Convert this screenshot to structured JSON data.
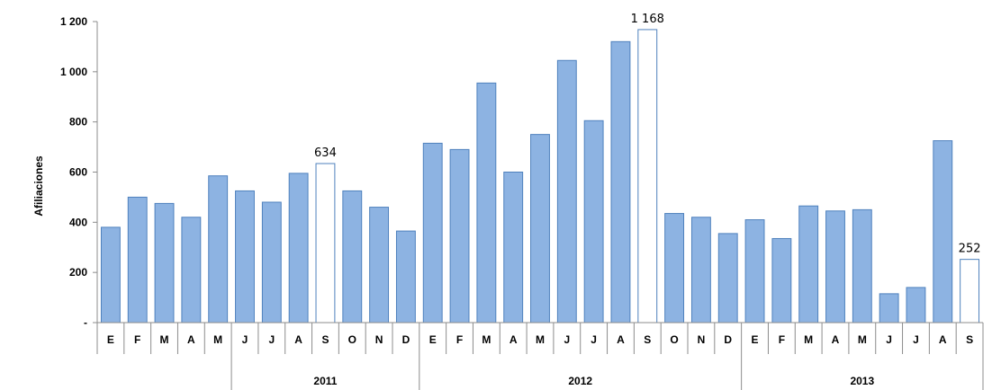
{
  "chart_data": {
    "type": "bar",
    "ylabel": "Afiliaciones",
    "ylim": [
      0,
      1200
    ],
    "yticks": [
      0,
      200,
      400,
      600,
      800,
      1000,
      1200
    ],
    "ytick_labels": [
      "-",
      "200",
      "400",
      "600",
      "800",
      "1 000",
      "1 200"
    ],
    "grid": false,
    "categories": [
      "E",
      "F",
      "M",
      "A",
      "M",
      "J",
      "J",
      "A",
      "S",
      "O",
      "N",
      "D",
      "E",
      "F",
      "M",
      "A",
      "M",
      "J",
      "J",
      "A",
      "S",
      "O",
      "N",
      "D",
      "E",
      "F",
      "M",
      "A",
      "M",
      "J",
      "J",
      "A",
      "S"
    ],
    "values": [
      380,
      500,
      475,
      420,
      585,
      525,
      480,
      595,
      634,
      525,
      460,
      365,
      715,
      690,
      955,
      600,
      750,
      1045,
      805,
      1120,
      1168,
      435,
      420,
      355,
      410,
      335,
      465,
      445,
      450,
      115,
      140,
      725,
      252
    ],
    "highlight_indices": [
      8,
      20,
      32
    ],
    "data_labels": [
      {
        "index": 8,
        "text": "634"
      },
      {
        "index": 20,
        "text": "1 168"
      },
      {
        "index": 32,
        "text": "252"
      }
    ],
    "groups": [
      {
        "label": "",
        "start": 0,
        "end": 4
      },
      {
        "label": "2011",
        "start": 5,
        "end": 11
      },
      {
        "label": "2012",
        "start": 12,
        "end": 23
      },
      {
        "label": "2013",
        "start": 24,
        "end": 32
      }
    ],
    "colors": {
      "fill": "#8DB3E2",
      "stroke": "#4F81BD",
      "highlight_fill": "#FFFFFF"
    }
  }
}
